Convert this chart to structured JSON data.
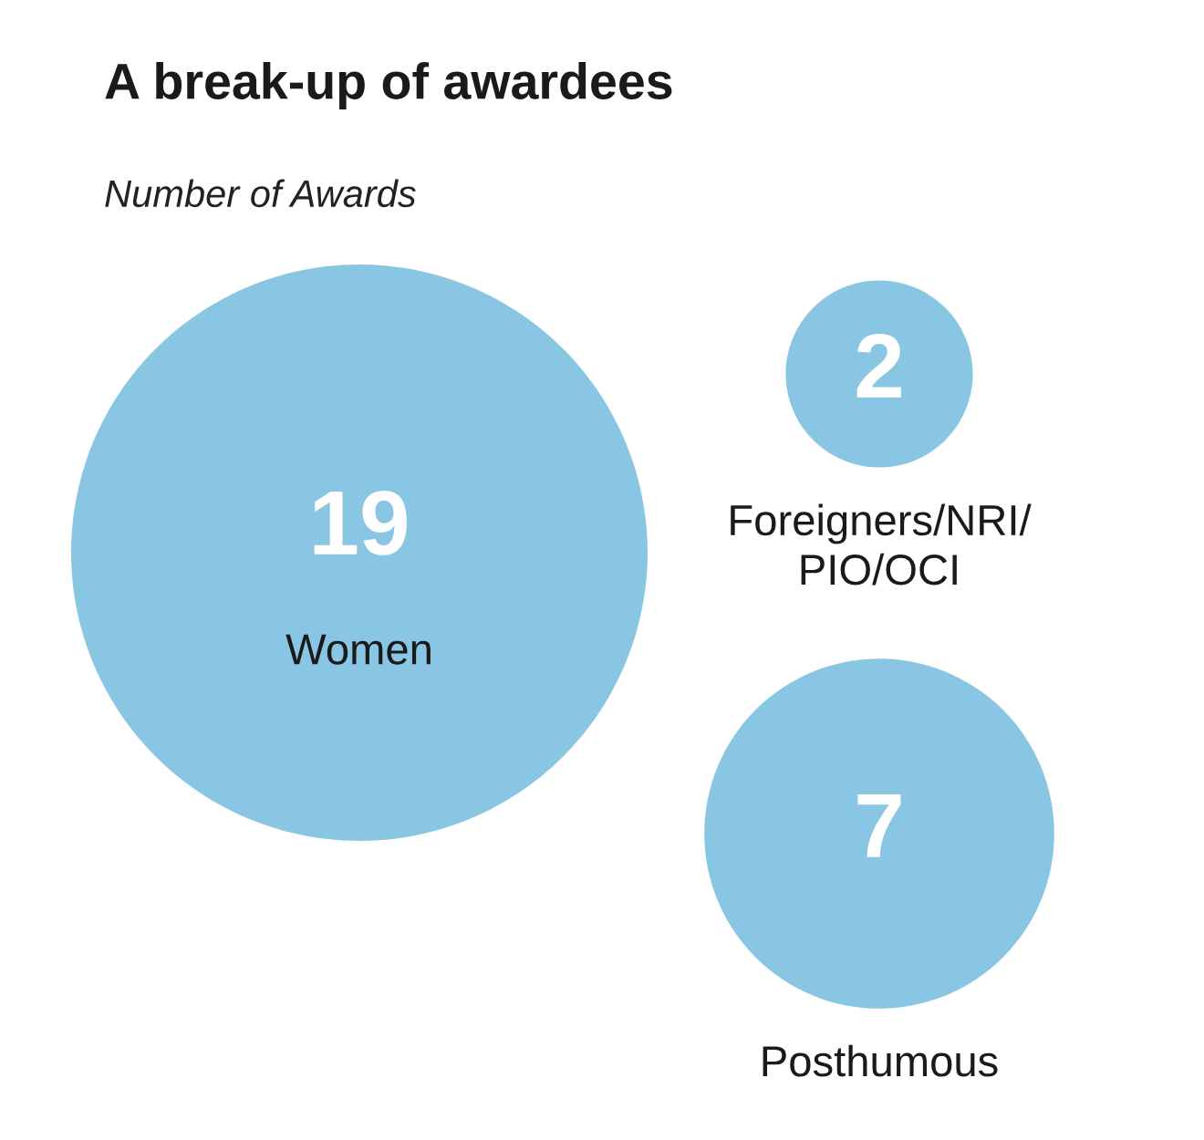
{
  "chart_data": {
    "type": "other",
    "title": "A break-up of awardees",
    "subtitle": "Number of Awards",
    "categories": [
      "Women",
      "Foreigners/NRI/\nPIO/OCI",
      "Posthumous"
    ],
    "values": [
      19,
      2,
      7
    ],
    "color": "#89c6e3",
    "data_labels": true
  }
}
